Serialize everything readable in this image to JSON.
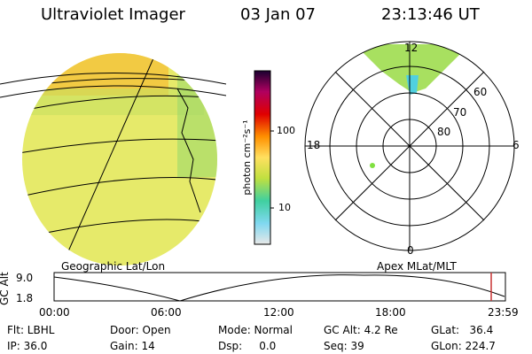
{
  "header": {
    "instrument": "Ultraviolet Imager",
    "date": "03 Jan 07",
    "time": "23:13:46 UT"
  },
  "colorbar": {
    "unit_label": "photon cm⁻²s⁻¹",
    "ticks": [
      "100",
      "10"
    ]
  },
  "polar": {
    "mlt_top": "12",
    "mlt_left": "18",
    "mlt_right": "6",
    "mlt_bottom": "0",
    "lat60": "60",
    "lat70": "70",
    "lat80": "80"
  },
  "labels": {
    "geo": "Geographic Lat/Lon",
    "apex": "Apex MLat/MLT"
  },
  "gc_axis": {
    "title": "GC Alt",
    "ticks": [
      "9.0",
      "1.8"
    ]
  },
  "time_axis": [
    "00:00",
    "06:00",
    "12:00",
    "18:00",
    "23:59"
  ],
  "footer": {
    "flt": "Flt: LBHL",
    "ip": "IP: 36.0",
    "door": "Door: Open",
    "gain": "Gain: 14",
    "mode": "Mode: Normal",
    "dsp": "Dsp:     0.0",
    "gcalt": "GC Alt: 4.2 Re",
    "seq": "Seq: 39",
    "glat": "GLat:   36.4",
    "glon": "GLon: 224.7"
  },
  "colors": {
    "image_fill": "#e6ea6a",
    "hot_band": "#f5c23a",
    "cursor": "#c83232"
  }
}
